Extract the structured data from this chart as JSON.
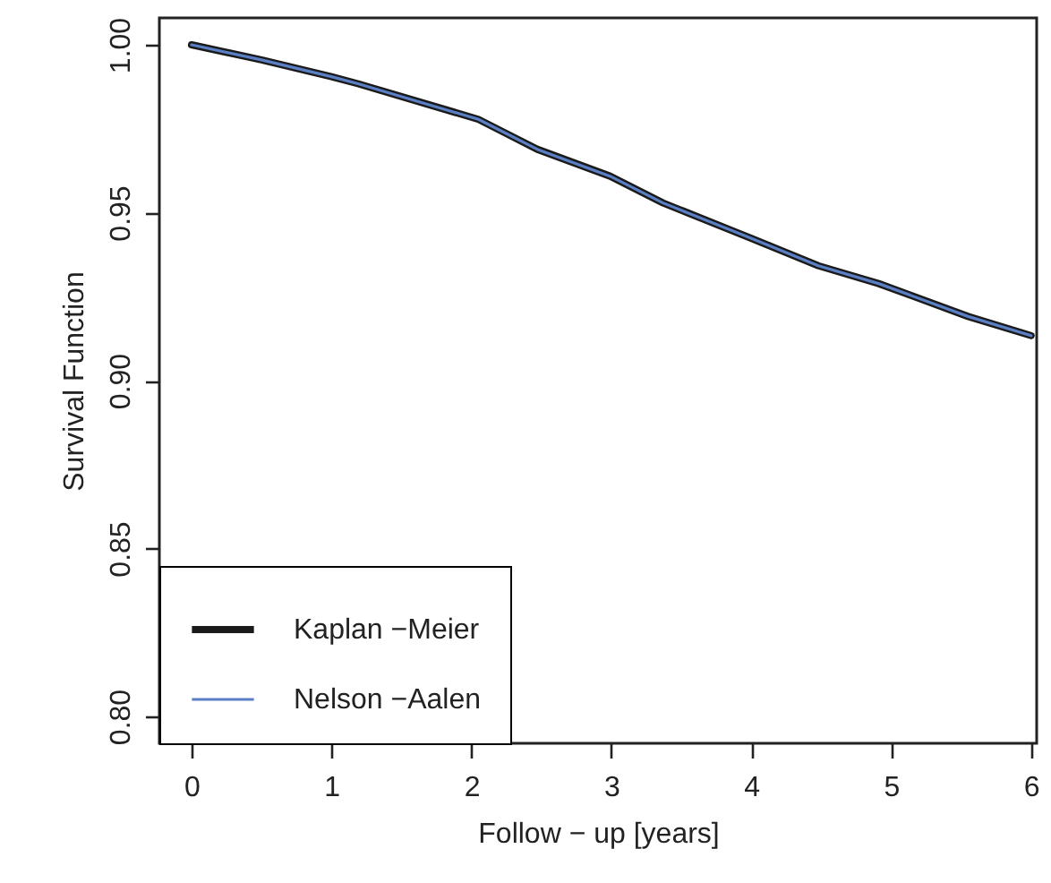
{
  "chart_data": {
    "type": "line",
    "xlabel": "Follow − up [years]",
    "ylabel": "Survival Function",
    "x": [
      0,
      0.5,
      1,
      1.19,
      2.05,
      2.22,
      2.47,
      2.99,
      3.37,
      4.01,
      4.48,
      4.91,
      5.55,
      6.0
    ],
    "series": [
      {
        "name": "Kaplan −Meier",
        "color": "#1a1a1a",
        "values": [
          1.0,
          0.9955,
          0.9905,
          0.9884,
          0.9778,
          0.9742,
          0.9689,
          0.9609,
          0.9529,
          0.9422,
          0.9342,
          0.9289,
          0.9191,
          0.9134
        ]
      },
      {
        "name": "Nelson −Aalen",
        "color": "#5b7fc4",
        "values": [
          1.0,
          0.9955,
          0.9905,
          0.9884,
          0.9778,
          0.9742,
          0.9689,
          0.9609,
          0.9529,
          0.9422,
          0.9342,
          0.9289,
          0.9191,
          0.9134
        ]
      }
    ],
    "xlim": [
      -0.23,
      6.04
    ],
    "ylim": [
      0.792,
      1.008
    ],
    "xticks": [
      0,
      1,
      2,
      3,
      4,
      5,
      6
    ],
    "yticks": [
      {
        "value": 0.8,
        "label": "0.80"
      },
      0.85,
      {
        "value": 0.9,
        "label": "0.90"
      },
      0.95,
      {
        "value": 1.0,
        "label": "1.00"
      }
    ],
    "legend": "bottom left",
    "grid": false,
    "marker": "none",
    "line_style": "solid"
  }
}
